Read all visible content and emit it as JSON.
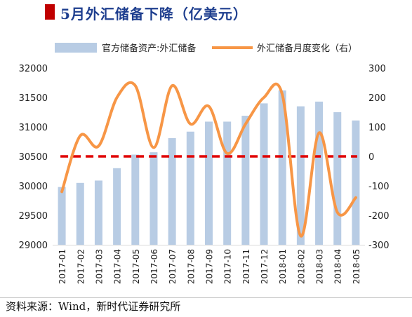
{
  "title": "5月外汇储备下降（亿美元）",
  "source": "资料来源：Wind，新时代证券研究所",
  "colors": {
    "title": "#1f3f8f",
    "title_mark": "#c00000",
    "bars": "#b8cce4",
    "line": "#f79646",
    "zero_line": "#e00000"
  },
  "chart_data": {
    "type": "bar",
    "categories": [
      "2017-01",
      "2017-02",
      "2017-03",
      "2017-04",
      "2017-05",
      "2017-06",
      "2017-07",
      "2017-08",
      "2017-09",
      "2017-10",
      "2017-11",
      "2017-12",
      "2018-01",
      "2018-02",
      "2018-03",
      "2018-04",
      "2018-05"
    ],
    "series": [
      {
        "name": "官方储备资产:外汇储备",
        "type": "bar",
        "axis": "left",
        "values": [
          29980,
          30050,
          30090,
          30300,
          30530,
          30570,
          30810,
          30920,
          31090,
          31090,
          31190,
          31400,
          31620,
          31350,
          31430,
          31250,
          31110
        ]
      },
      {
        "name": "外汇储备月度变化（右）",
        "type": "line",
        "axis": "right",
        "values": [
          -120,
          70,
          35,
          200,
          240,
          30,
          240,
          110,
          170,
          10,
          110,
          200,
          210,
          -270,
          80,
          -190,
          -140
        ]
      }
    ],
    "reference_line": {
      "axis": "right",
      "value": 0
    },
    "ylim_left": [
      29000,
      32000
    ],
    "yticks_left": [
      "29000",
      "29500",
      "30000",
      "30500",
      "31000",
      "31500",
      "32000"
    ],
    "ylim_right": [
      -300,
      300
    ],
    "yticks_right": [
      "-300",
      "-200",
      "-100",
      "0",
      "100",
      "200",
      "300"
    ],
    "legend_position": "top",
    "grid": false
  }
}
